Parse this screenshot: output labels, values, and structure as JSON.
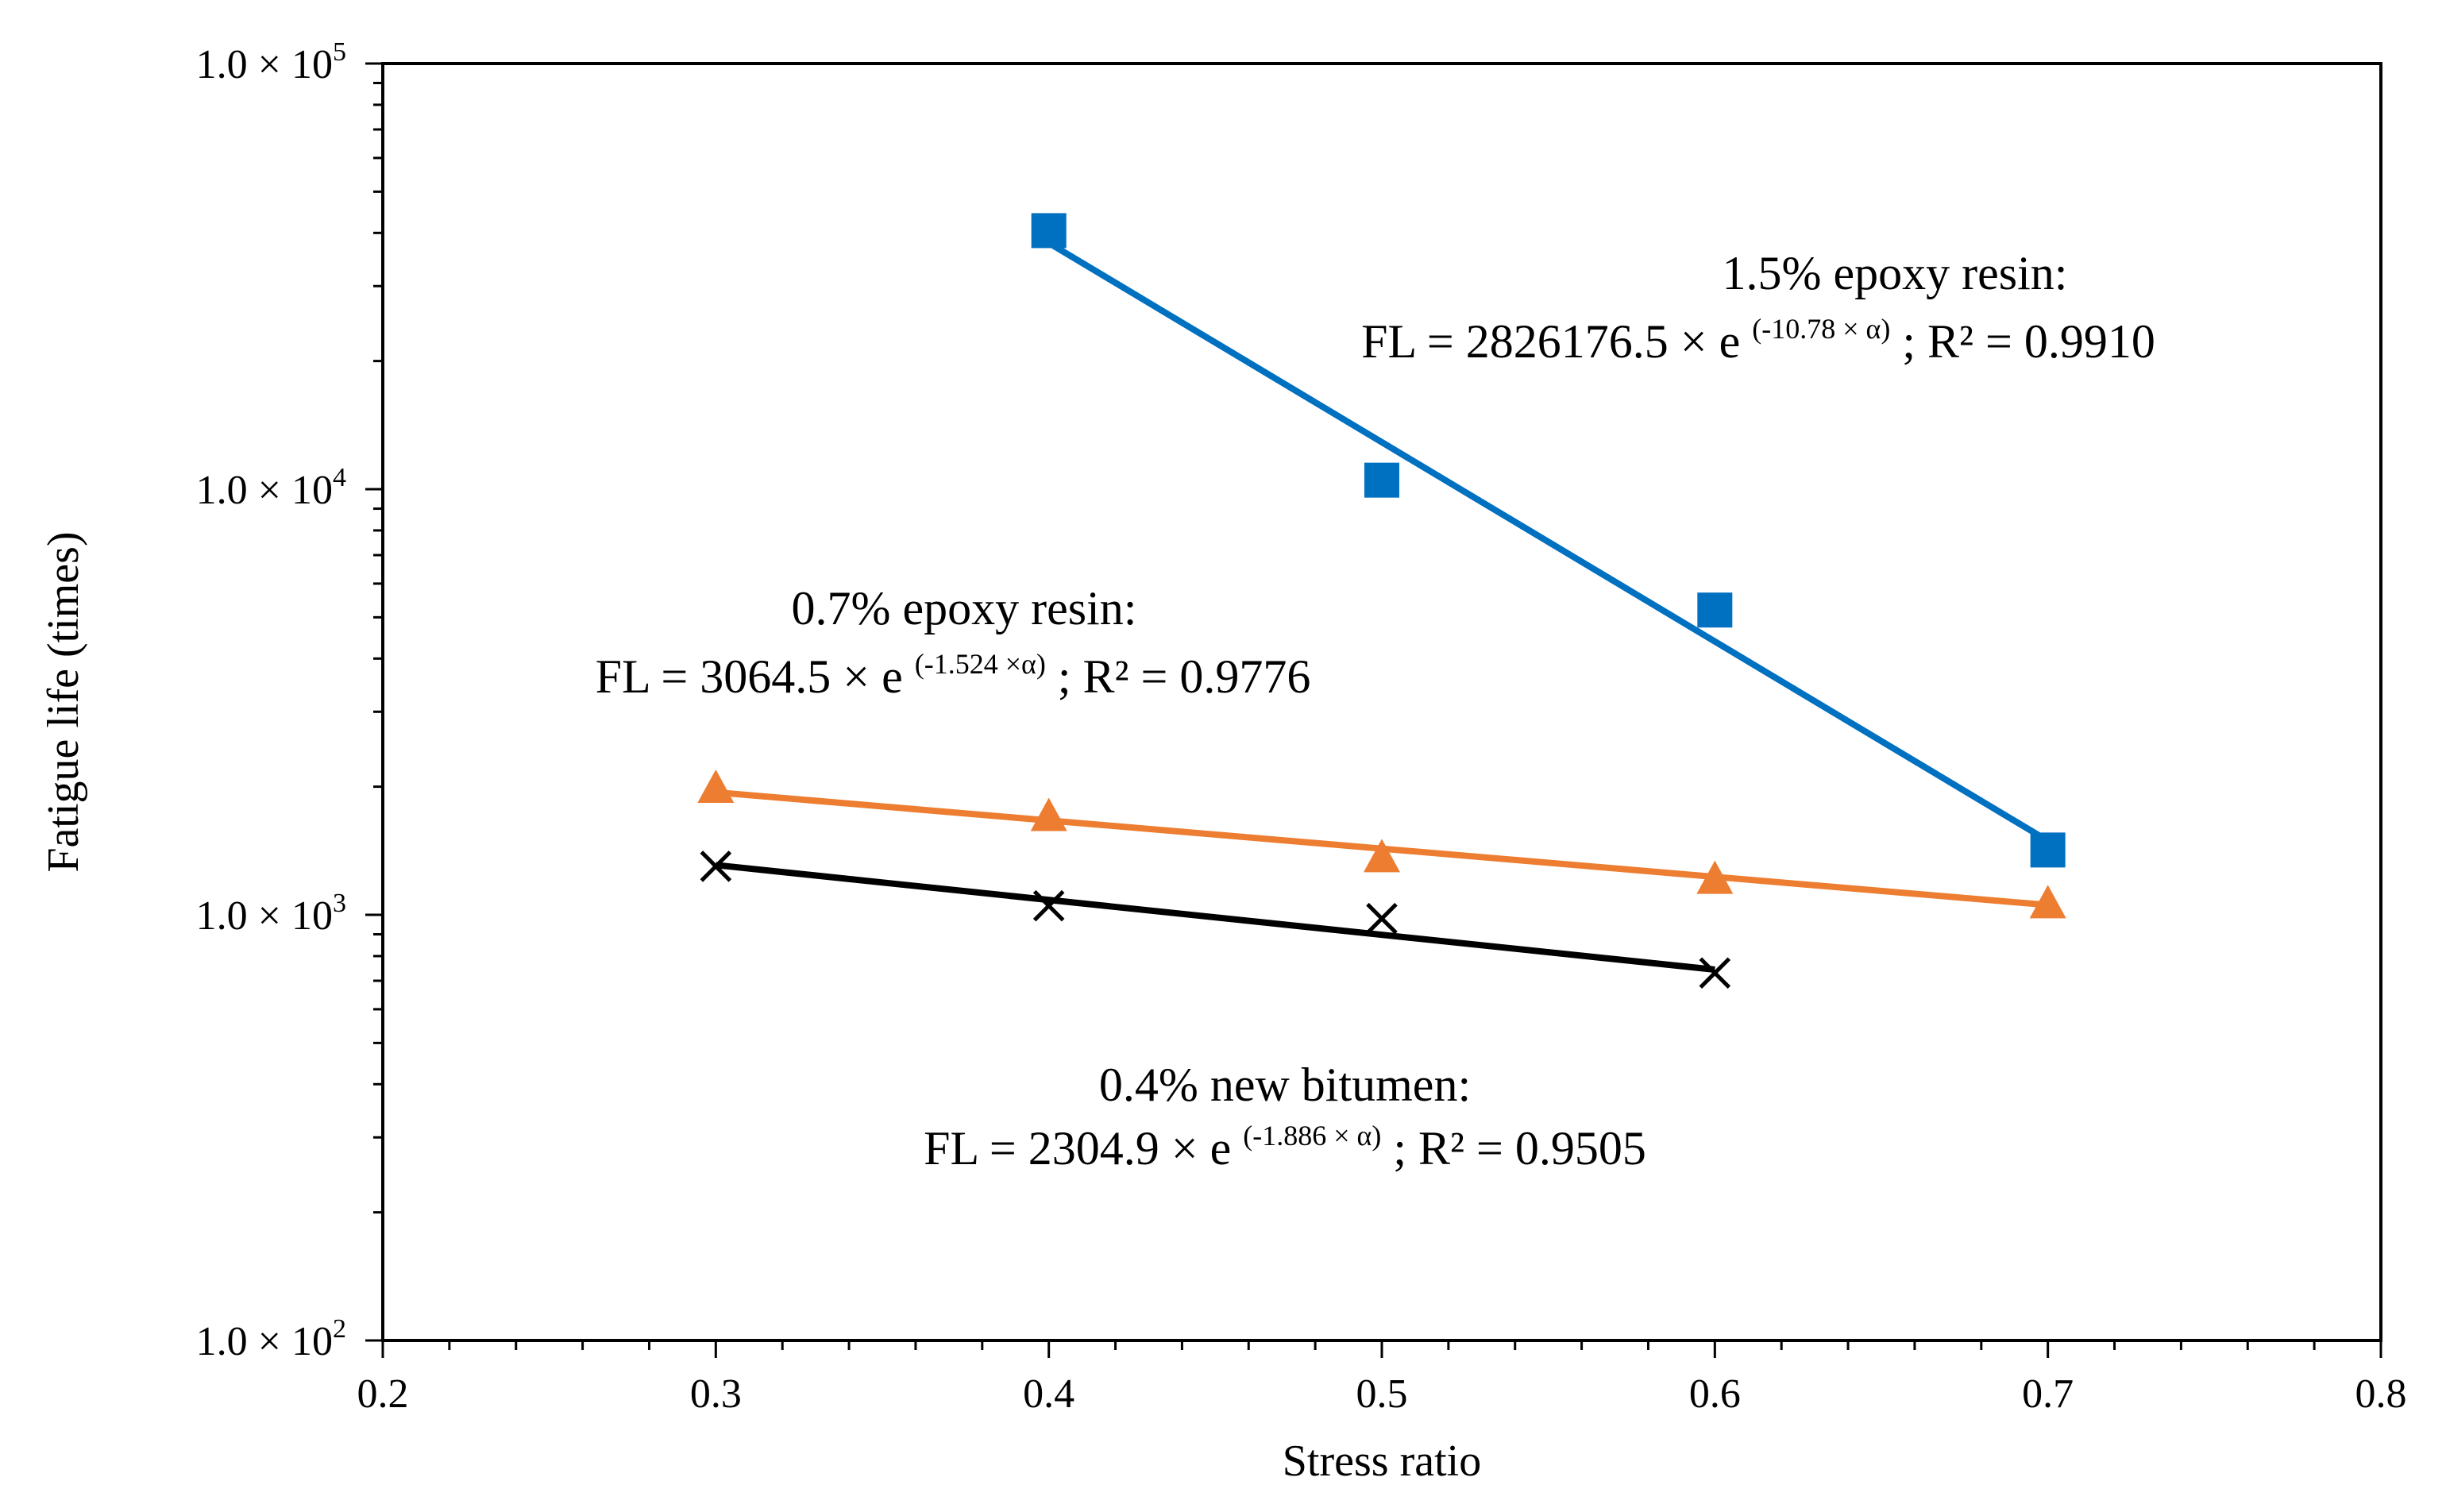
{
  "chart_data": {
    "type": "scatter",
    "title": "",
    "xlabel": "Stress ratio",
    "ylabel": "Fatigue life (times)",
    "xlim": [
      0.2,
      0.8
    ],
    "ylim": [
      100,
      100000
    ],
    "yscale": "log",
    "x_ticks": [
      {
        "value": 0.2,
        "label": "0.2"
      },
      {
        "value": 0.3,
        "label": "0.3"
      },
      {
        "value": 0.4,
        "label": "0.4"
      },
      {
        "value": 0.5,
        "label": "0.5"
      },
      {
        "value": 0.6,
        "label": "0.6"
      },
      {
        "value": 0.7,
        "label": "0.7"
      },
      {
        "value": 0.8,
        "label": "0.8"
      }
    ],
    "y_ticks": [
      {
        "value": 100,
        "mantissa": "1.0 × 10",
        "exp": "2"
      },
      {
        "value": 1000,
        "mantissa": "1.0 × 10",
        "exp": "3"
      },
      {
        "value": 10000,
        "mantissa": "1.0 × 10",
        "exp": "4"
      },
      {
        "value": 100000,
        "mantissa": "1.0 × 10",
        "exp": "5"
      }
    ],
    "series": [
      {
        "name": "1.5% epoxy resin",
        "marker": "square",
        "color": "#0070C0",
        "x": [
          0.4,
          0.5,
          0.6,
          0.7
        ],
        "y": [
          40500,
          10500,
          5200,
          1420
        ],
        "fit": {
          "a": 2826176.5,
          "b": -10.78,
          "x_from": 0.4,
          "x_to": 0.7
        }
      },
      {
        "name": "0.7% epoxy resin",
        "marker": "triangle",
        "color": "#ED7D31",
        "x": [
          0.3,
          0.4,
          0.5,
          0.6,
          0.7
        ],
        "y": [
          1980,
          1700,
          1360,
          1210,
          1060
        ],
        "fit": {
          "a": 3064.5,
          "b": -1.524,
          "x_from": 0.3,
          "x_to": 0.7
        }
      },
      {
        "name": "0.4% new bitumen",
        "marker": "x",
        "color": "#000000",
        "x": [
          0.3,
          0.4,
          0.5,
          0.6
        ],
        "y": [
          1300,
          1050,
          980,
          730
        ],
        "fit": {
          "a": 2304.9,
          "b": -1.886,
          "x_from": 0.3,
          "x_to": 0.6
        }
      }
    ],
    "annotations": [
      {
        "title": "1.5% epoxy resin:",
        "eq_prefix": "FL = 2826176.5 × e",
        "eq_exp": "(-10.78 × α)",
        "eq_suffix": "; R² = 0.9910"
      },
      {
        "title": "0.7% epoxy resin:",
        "eq_prefix": "FL = 3064.5 × e",
        "eq_exp": "(-1.524 ×α)",
        "eq_suffix": "; R² = 0.9776"
      },
      {
        "title": "0.4% new bitumen:",
        "eq_prefix": "FL = 2304.9 × e",
        "eq_exp": "(-1.886 × α)",
        "eq_suffix": "; R² = 0.9505"
      }
    ],
    "grid": false,
    "legend": "none"
  }
}
